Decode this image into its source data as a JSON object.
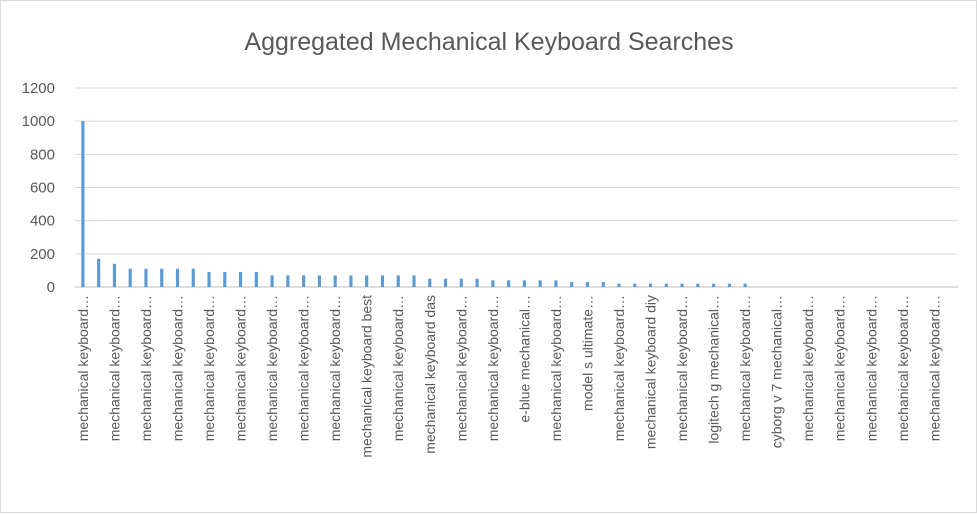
{
  "chart_data": {
    "type": "bar",
    "title": "Aggregated Mechanical Keyboard Searches",
    "xlabel": "",
    "ylabel": "",
    "ylim": [
      0,
      1200
    ],
    "yticks": [
      0,
      200,
      400,
      600,
      800,
      1000,
      1200
    ],
    "grid": true,
    "legend": "none",
    "bar_color": "#5b9bd5",
    "categories": [
      "mechanical keyboard…",
      "",
      "mechanical keyboard…",
      "",
      "mechanical keyboard…",
      "",
      "mechanical keyboard…",
      "",
      "mechanical keyboard…",
      "",
      "mechanical keyboard…",
      "",
      "mechanical keyboard…",
      "",
      "mechanical keyboard…",
      "",
      "mechanical keyboard…",
      "",
      "mechanical keyboard best",
      "",
      "mechanical keyboard…",
      "",
      "mechanical keyboard das",
      "",
      "mechanical keyboard…",
      "",
      "mechanical keyboard…",
      "",
      "e-blue mechanical…",
      "",
      "mechanical keyboard…",
      "",
      "model s ultimate…",
      "",
      "mechanical keyboard…",
      "",
      "mechanical keyboard diy",
      "",
      "mechanical keyboard…",
      "",
      "logitech g mechanical…",
      "",
      "mechanical keyboard…",
      "",
      "cyborg v 7 mechanical…",
      "",
      "mechanical keyboard…",
      "",
      "mechanical keyboard…",
      "",
      "mechanical keyboard…",
      "",
      "mechanical keyboard…",
      "",
      "mechanical keyboard…",
      ""
    ],
    "values": [
      1000,
      170,
      140,
      110,
      110,
      110,
      110,
      110,
      90,
      90,
      90,
      90,
      70,
      70,
      70,
      70,
      70,
      70,
      70,
      70,
      70,
      70,
      50,
      50,
      50,
      50,
      40,
      40,
      40,
      40,
      40,
      30,
      30,
      30,
      20,
      20,
      20,
      20,
      20,
      20,
      20,
      20,
      20,
      0,
      0,
      0,
      0,
      0,
      0,
      0,
      0,
      0,
      0,
      0,
      0,
      0
    ]
  }
}
